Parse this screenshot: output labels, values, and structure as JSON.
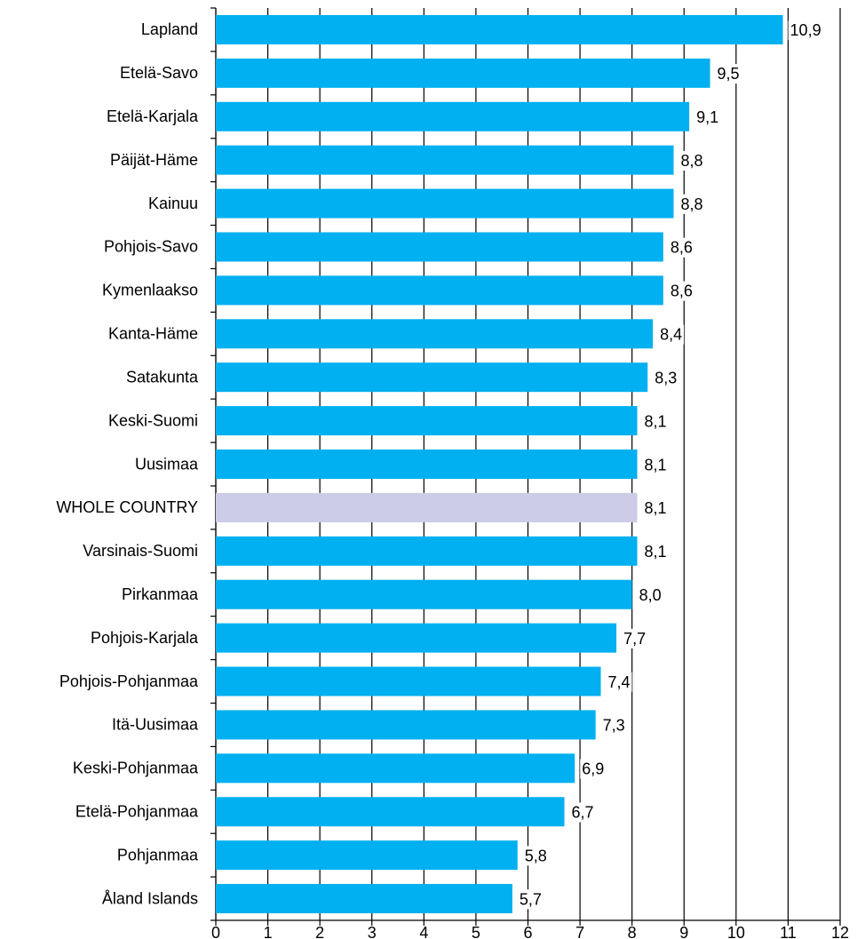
{
  "chart_data": {
    "type": "hbar",
    "categories": [
      "Lapland",
      "Etelä-Savo",
      "Etelä-Karjala",
      "Päijät-Häme",
      "Kainuu",
      "Pohjois-Savo",
      "Kymenlaakso",
      "Kanta-Häme",
      "Satakunta",
      "Keski-Suomi",
      "Uusimaa",
      "WHOLE COUNTRY",
      "Varsinais-Suomi",
      "Pirkanmaa",
      "Pohjois-Karjala",
      "Pohjois-Pohjanmaa",
      "Itä-Uusimaa",
      "Keski-Pohjanmaa",
      "Etelä-Pohjanmaa",
      "Pohjanmaa",
      "Åland Islands"
    ],
    "values": [
      10.9,
      9.5,
      9.1,
      8.8,
      8.8,
      8.6,
      8.6,
      8.4,
      8.3,
      8.1,
      8.1,
      8.1,
      8.1,
      8.0,
      7.7,
      7.4,
      7.3,
      6.9,
      6.7,
      5.8,
      5.7
    ],
    "value_labels": [
      "10,9",
      "9,5",
      "9,1",
      "8,8",
      "8,8",
      "8,6",
      "8,6",
      "8,4",
      "8,3",
      "8,1",
      "8,1",
      "8,1",
      "8,1",
      "8,0",
      "7,7",
      "7,4",
      "7,3",
      "6,9",
      "6,7",
      "5,8",
      "5,7"
    ],
    "colors": [
      "#00b0f0",
      "#00b0f0",
      "#00b0f0",
      "#00b0f0",
      "#00b0f0",
      "#00b0f0",
      "#00b0f0",
      "#00b0f0",
      "#00b0f0",
      "#00b0f0",
      "#00b0f0",
      "#ccccE6",
      "#00b0f0",
      "#00b0f0",
      "#00b0f0",
      "#00b0f0",
      "#00b0f0",
      "#00b0f0",
      "#00b0f0",
      "#00b0f0",
      "#00b0f0"
    ],
    "xlim": [
      0,
      12
    ],
    "xticks": [
      0,
      1,
      2,
      3,
      4,
      5,
      6,
      7,
      8,
      9,
      10,
      11,
      12
    ],
    "grid": true
  }
}
